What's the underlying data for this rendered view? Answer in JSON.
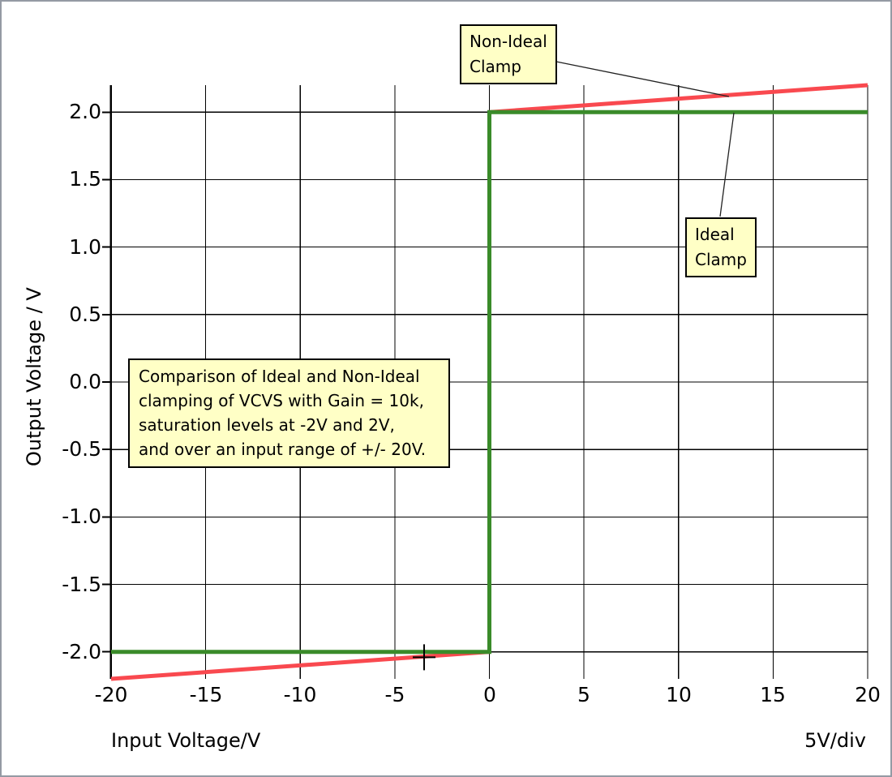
{
  "window": {
    "background": "#ffffff",
    "border_color": "#949aa4"
  },
  "chart_data": {
    "type": "line",
    "title": "",
    "xlabel": "Input Voltage/V",
    "ylabel": "Output Voltage / V",
    "scale_note": "5V/div",
    "xlim": [
      -20,
      20
    ],
    "ylim": [
      -2.2,
      2.2
    ],
    "grid": true,
    "gridline_color": "#000000",
    "xticks": [
      {
        "v": -20,
        "label": "-20"
      },
      {
        "v": -15,
        "label": "-15"
      },
      {
        "v": -10,
        "label": "-10"
      },
      {
        "v": -5,
        "label": "-5"
      },
      {
        "v": 0,
        "label": "0"
      },
      {
        "v": 5,
        "label": "5"
      },
      {
        "v": 10,
        "label": "10"
      },
      {
        "v": 15,
        "label": "15"
      },
      {
        "v": 20,
        "label": "20"
      }
    ],
    "yticks": [
      {
        "v": 2.0,
        "label": "2.0"
      },
      {
        "v": 1.5,
        "label": "1.5"
      },
      {
        "v": 1.0,
        "label": "1.0"
      },
      {
        "v": 0.5,
        "label": "0.5"
      },
      {
        "v": 0.0,
        "label": "0.0"
      },
      {
        "v": -0.5,
        "label": "-0.5"
      },
      {
        "v": -1.0,
        "label": "-1.0"
      },
      {
        "v": -1.5,
        "label": "-1.5"
      },
      {
        "v": -2.0,
        "label": "-2.0"
      }
    ],
    "series": [
      {
        "name": "Non-Ideal Clamp",
        "color": "#f9494f",
        "width": 5,
        "points": [
          [
            -20,
            -2.2
          ],
          [
            0,
            -2.0
          ],
          [
            0,
            2.0
          ],
          [
            20,
            2.2
          ]
        ]
      },
      {
        "name": "Ideal Clamp",
        "color": "#3a8b2a",
        "width": 5,
        "points": [
          [
            -20,
            -2.0
          ],
          [
            0,
            -2.0
          ],
          [
            0,
            2.0
          ],
          [
            20,
            2.0
          ]
        ]
      }
    ],
    "cursor": {
      "x": -3.45,
      "y": -2.04
    },
    "annotation_bg": "#ffffc6",
    "annotations": [
      {
        "id": "non-ideal-clamp-label",
        "text": "Non-Ideal\nClamp",
        "points_to": "Non-Ideal Clamp"
      },
      {
        "id": "ideal-clamp-label",
        "text": "Ideal\nClamp",
        "points_to": "Ideal Clamp"
      },
      {
        "id": "description",
        "text": "Comparison of Ideal and Non-Ideal\nclamping of VCVS with Gain = 10k,\nsaturation levels at -2V and 2V,\nand over an input range of +/- 20V."
      }
    ]
  }
}
